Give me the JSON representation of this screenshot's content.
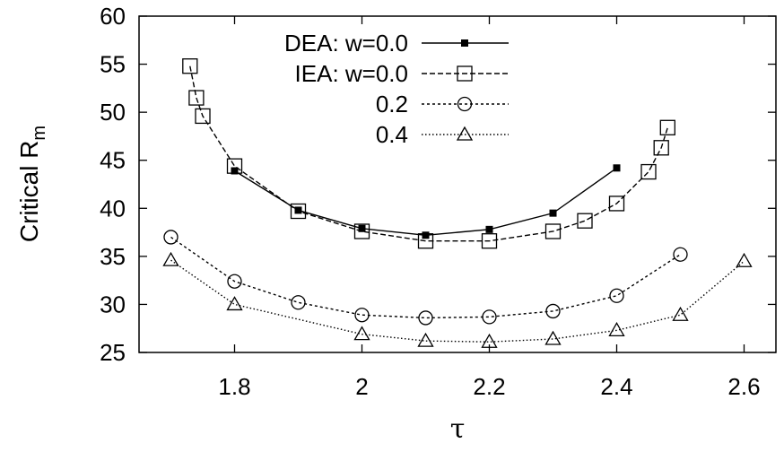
{
  "chart_data": {
    "type": "line",
    "xlabel": "τ",
    "ylabel_main": "Critical R",
    "ylabel_sub": "m",
    "xlim": [
      1.65,
      2.65
    ],
    "ylim": [
      25,
      60
    ],
    "xticks": [
      1.8,
      2,
      2.2,
      2.4,
      2.6
    ],
    "xtick_labels": [
      "1.8",
      "2",
      "2.2",
      "2.4",
      "2.6"
    ],
    "yticks": [
      25,
      30,
      35,
      40,
      45,
      50,
      55,
      60
    ],
    "ytick_labels": [
      "25",
      "30",
      "35",
      "40",
      "45",
      "50",
      "55",
      "60"
    ],
    "grid": false,
    "legend_position": "top-center",
    "series": [
      {
        "name": "DEA: w=0.0",
        "line": "solid",
        "marker": "filled-square",
        "x": [
          1.8,
          1.9,
          2.0,
          2.1,
          2.2,
          2.3,
          2.4
        ],
        "y": [
          43.9,
          39.8,
          37.9,
          37.2,
          37.8,
          39.5,
          44.2
        ]
      },
      {
        "name": "IEA: w=0.0",
        "line": "dashed",
        "marker": "open-square",
        "x": [
          1.73,
          1.74,
          1.75,
          1.8,
          1.9,
          2.0,
          2.1,
          2.2,
          2.3,
          2.35,
          2.4,
          2.45,
          2.47,
          2.48
        ],
        "y": [
          54.8,
          51.5,
          49.6,
          44.4,
          39.7,
          37.6,
          36.6,
          36.6,
          37.6,
          38.7,
          40.5,
          43.8,
          46.3,
          48.4
        ]
      },
      {
        "name": "0.2",
        "line": "dotted",
        "marker": "open-circle",
        "x": [
          1.7,
          1.8,
          1.9,
          2.0,
          2.1,
          2.2,
          2.3,
          2.4,
          2.5
        ],
        "y": [
          37.0,
          32.4,
          30.2,
          28.9,
          28.6,
          28.7,
          29.3,
          30.9,
          35.2
        ]
      },
      {
        "name": "0.4",
        "line": "fine-dotted",
        "marker": "open-triangle",
        "x": [
          1.7,
          1.8,
          2.0,
          2.1,
          2.2,
          2.3,
          2.4,
          2.5,
          2.6
        ],
        "y": [
          34.6,
          30.0,
          26.9,
          26.2,
          26.1,
          26.4,
          27.3,
          28.9,
          34.5
        ]
      }
    ]
  }
}
